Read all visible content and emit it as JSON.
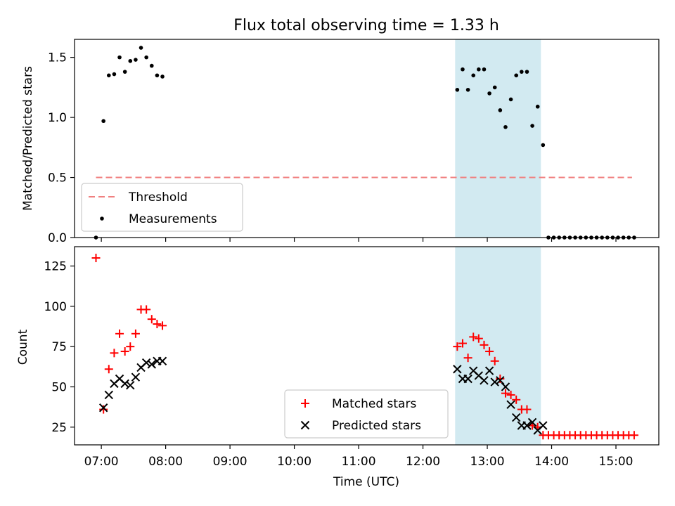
{
  "chart_data": {
    "type": "scatter",
    "title": "Flux total observing time = 1.33 h",
    "xlabel": "Time (UTC)",
    "x_ticks": [
      "07:00",
      "08:00",
      "09:00",
      "10:00",
      "11:00",
      "12:00",
      "13:00",
      "14:00",
      "15:00"
    ],
    "xlim": [
      "06:35",
      "15:40"
    ],
    "highlight_span": {
      "start": "12:30",
      "end": "13:50",
      "color": "#add8e6"
    },
    "panels": [
      {
        "ylabel": "Matched/Predicted stars",
        "ylim": [
          0,
          1.65
        ],
        "y_ticks": [
          "0.0",
          "0.5",
          "1.0",
          "1.5"
        ],
        "legend": {
          "position": "lower-left",
          "entries": [
            "Threshold",
            "Measurements"
          ]
        },
        "series": [
          {
            "name": "Threshold",
            "kind": "line",
            "style": "dashed",
            "color": "#f08080",
            "points": [
              [
                "06:55",
                0.5
              ],
              [
                "15:15",
                0.5
              ]
            ]
          },
          {
            "name": "Measurements",
            "kind": "scatter",
            "marker": "dot",
            "color": "#000000",
            "points": [
              [
                "06:55",
                0.0
              ],
              [
                "07:02",
                0.97
              ],
              [
                "07:07",
                1.35
              ],
              [
                "07:12",
                1.36
              ],
              [
                "07:17",
                1.5
              ],
              [
                "07:22",
                1.38
              ],
              [
                "07:27",
                1.47
              ],
              [
                "07:32",
                1.48
              ],
              [
                "07:37",
                1.58
              ],
              [
                "07:42",
                1.5
              ],
              [
                "07:47",
                1.43
              ],
              [
                "07:52",
                1.35
              ],
              [
                "07:57",
                1.34
              ],
              [
                "12:32",
                1.23
              ],
              [
                "12:37",
                1.4
              ],
              [
                "12:42",
                1.23
              ],
              [
                "12:47",
                1.35
              ],
              [
                "12:52",
                1.4
              ],
              [
                "12:57",
                1.4
              ],
              [
                "13:02",
                1.2
              ],
              [
                "13:07",
                1.25
              ],
              [
                "13:12",
                1.06
              ],
              [
                "13:17",
                0.92
              ],
              [
                "13:22",
                1.15
              ],
              [
                "13:27",
                1.35
              ],
              [
                "13:32",
                1.38
              ],
              [
                "13:37",
                1.38
              ],
              [
                "13:42",
                0.93
              ],
              [
                "13:47",
                1.09
              ],
              [
                "13:52",
                0.77
              ],
              [
                "13:57",
                0.0
              ],
              [
                "14:02",
                0.0
              ],
              [
                "14:07",
                0.0
              ],
              [
                "14:12",
                0.0
              ],
              [
                "14:17",
                0.0
              ],
              [
                "14:22",
                0.0
              ],
              [
                "14:27",
                0.0
              ],
              [
                "14:32",
                0.0
              ],
              [
                "14:37",
                0.0
              ],
              [
                "14:42",
                0.0
              ],
              [
                "14:47",
                0.0
              ],
              [
                "14:52",
                0.0
              ],
              [
                "14:57",
                0.0
              ],
              [
                "15:02",
                0.0
              ],
              [
                "15:07",
                0.0
              ],
              [
                "15:12",
                0.0
              ],
              [
                "15:17",
                0.0
              ]
            ]
          }
        ]
      },
      {
        "ylabel": "Count",
        "ylim": [
          14,
          137
        ],
        "y_ticks": [
          "25",
          "50",
          "75",
          "100",
          "125"
        ],
        "legend": {
          "position": "lower-center",
          "entries": [
            "Matched stars",
            "Predicted stars"
          ]
        },
        "series": [
          {
            "name": "Matched stars",
            "kind": "scatter",
            "marker": "plus",
            "color": "#ff0000",
            "points": [
              [
                "06:55",
                130
              ],
              [
                "07:02",
                36
              ],
              [
                "07:07",
                61
              ],
              [
                "07:12",
                71
              ],
              [
                "07:17",
                83
              ],
              [
                "07:22",
                72
              ],
              [
                "07:27",
                75
              ],
              [
                "07:32",
                83
              ],
              [
                "07:37",
                98
              ],
              [
                "07:42",
                98
              ],
              [
                "07:47",
                92
              ],
              [
                "07:52",
                89
              ],
              [
                "07:57",
                88
              ],
              [
                "12:32",
                75
              ],
              [
                "12:37",
                77
              ],
              [
                "12:42",
                68
              ],
              [
                "12:47",
                81
              ],
              [
                "12:52",
                80
              ],
              [
                "12:57",
                76
              ],
              [
                "13:02",
                72
              ],
              [
                "13:07",
                66
              ],
              [
                "13:12",
                55
              ],
              [
                "13:17",
                46
              ],
              [
                "13:22",
                45
              ],
              [
                "13:27",
                42
              ],
              [
                "13:32",
                36
              ],
              [
                "13:37",
                36
              ],
              [
                "13:42",
                26
              ],
              [
                "13:47",
                25
              ],
              [
                "13:52",
                20
              ],
              [
                "13:57",
                20
              ],
              [
                "14:02",
                20
              ],
              [
                "14:07",
                20
              ],
              [
                "14:12",
                20
              ],
              [
                "14:17",
                20
              ],
              [
                "14:22",
                20
              ],
              [
                "14:27",
                20
              ],
              [
                "14:32",
                20
              ],
              [
                "14:37",
                20
              ],
              [
                "14:42",
                20
              ],
              [
                "14:47",
                20
              ],
              [
                "14:52",
                20
              ],
              [
                "14:57",
                20
              ],
              [
                "15:02",
                20
              ],
              [
                "15:07",
                20
              ],
              [
                "15:12",
                20
              ],
              [
                "15:17",
                20
              ]
            ]
          },
          {
            "name": "Predicted stars",
            "kind": "scatter",
            "marker": "x",
            "color": "#000000",
            "points": [
              [
                "07:02",
                37
              ],
              [
                "07:07",
                45
              ],
              [
                "07:12",
                52
              ],
              [
                "07:17",
                55
              ],
              [
                "07:22",
                52
              ],
              [
                "07:27",
                51
              ],
              [
                "07:32",
                56
              ],
              [
                "07:37",
                62
              ],
              [
                "07:42",
                65
              ],
              [
                "07:47",
                64
              ],
              [
                "07:52",
                66
              ],
              [
                "07:57",
                66
              ],
              [
                "12:32",
                61
              ],
              [
                "12:37",
                55
              ],
              [
                "12:42",
                55
              ],
              [
                "12:47",
                60
              ],
              [
                "12:52",
                57
              ],
              [
                "12:57",
                54
              ],
              [
                "13:02",
                60
              ],
              [
                "13:07",
                53
              ],
              [
                "13:12",
                54
              ],
              [
                "13:17",
                50
              ],
              [
                "13:22",
                39
              ],
              [
                "13:27",
                31
              ],
              [
                "13:32",
                26
              ],
              [
                "13:37",
                26
              ],
              [
                "13:42",
                28
              ],
              [
                "13:47",
                23
              ],
              [
                "13:52",
                26
              ]
            ]
          }
        ]
      }
    ]
  }
}
